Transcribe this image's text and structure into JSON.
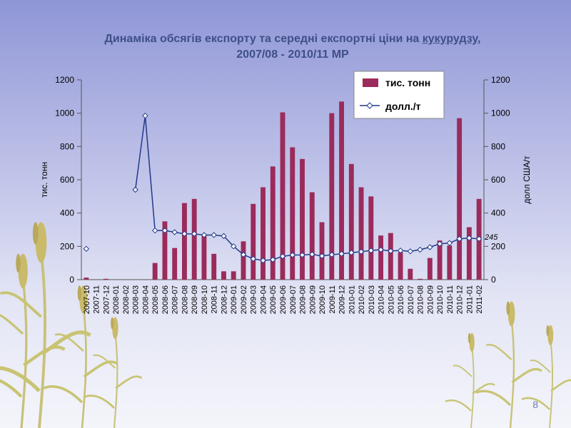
{
  "slide": {
    "title_line1": "Динаміка обсягів експорту та середні експортні ціни на ",
    "title_link": "кукурудзу",
    "title_after_link": ",",
    "title_line2": "2007/08 - 2010/11 МР",
    "page_number": "8"
  },
  "colors": {
    "bars": "#9b2b5b",
    "line": "#223a8a",
    "marker_fill": "#ffffff"
  },
  "chart_data": {
    "type": "bar",
    "title": "",
    "xlabel": "",
    "ylabel": "тис. тонн",
    "y2label": "долл США/т",
    "ylim": [
      0,
      1200
    ],
    "y2lim": [
      0,
      1200
    ],
    "yticks": [
      "0",
      "200",
      "400",
      "600",
      "800",
      "1000",
      "1200"
    ],
    "y2ticks": [
      "0",
      "200",
      "400",
      "600",
      "800",
      "1000",
      "1200"
    ],
    "legend_position": "top-right",
    "annotation": "245",
    "categories": [
      "2007-10",
      "2007-11",
      "2007-12",
      "2008-01",
      "2008-02",
      "2008-03",
      "2008-04",
      "2008-05",
      "2008-06",
      "2008-07",
      "2008-08",
      "2008-09",
      "2008-10",
      "2008-11",
      "2008-12",
      "2009-01",
      "2009-02",
      "2009-03",
      "2009-04",
      "2009-05",
      "2009-06",
      "2009-07",
      "2009-08",
      "2009-09",
      "2009-10",
      "2009-11",
      "2009-12",
      "2010-01",
      "2010-02",
      "2010-03",
      "2010-04",
      "2010-05",
      "2010-06",
      "2010-07",
      "2010-08",
      "2010-09",
      "2010-10",
      "2010-11",
      "2010-12",
      "2011-01",
      "2011-02"
    ],
    "series": [
      {
        "name": "тис. тонн",
        "type": "bar",
        "values": [
          12,
          0,
          5,
          0,
          0,
          0,
          0,
          100,
          350,
          190,
          460,
          485,
          265,
          155,
          50,
          50,
          230,
          455,
          555,
          680,
          1005,
          795,
          725,
          525,
          345,
          1000,
          1070,
          695,
          555,
          500,
          265,
          280,
          165,
          65,
          5,
          130,
          235,
          205,
          970,
          315,
          485
        ]
      },
      {
        "name": "долл./т",
        "type": "line",
        "values": [
          185,
          null,
          null,
          null,
          null,
          540,
          985,
          295,
          295,
          285,
          275,
          275,
          268,
          268,
          262,
          200,
          150,
          125,
          115,
          120,
          140,
          148,
          148,
          152,
          142,
          150,
          155,
          162,
          168,
          175,
          180,
          172,
          175,
          170,
          180,
          195,
          215,
          220,
          245,
          250,
          245
        ]
      }
    ]
  }
}
